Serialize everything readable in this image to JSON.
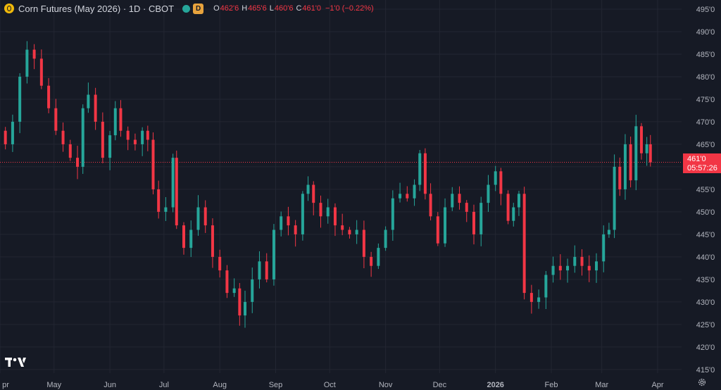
{
  "legend": {
    "symbol_icon": "coin-icon",
    "title": "Corn Futures (May 2026) · 1D · CBOT",
    "status_icon": "market-dot-icon",
    "badge": "D",
    "open_label": "O",
    "open_value": "462'6",
    "high_label": "H",
    "high_value": "465'6",
    "low_label": "L",
    "low_value": "460'6",
    "close_label": "C",
    "close_value": "461'0",
    "change": "−1'0 (−0.22%)"
  },
  "price_tag": {
    "price": "461'0",
    "countdown": "05:57:26"
  },
  "colors": {
    "up": "#26a69a",
    "down": "#f23645",
    "background": "#161a25",
    "grid": "#232632",
    "axis_text": "#b2b5be"
  },
  "icons": {
    "logo": "tradingview-logo-icon",
    "settings": "gear-icon"
  },
  "chart_data": {
    "type": "candlestick",
    "title": "Corn Futures (May 2026)",
    "y_axis_labels": [
      "495'0",
      "490'0",
      "485'0",
      "480'0",
      "475'0",
      "470'0",
      "465'0",
      "460'0",
      "455'0",
      "450'0",
      "445'0",
      "440'0",
      "435'0",
      "430'0",
      "425'0",
      "420'0",
      "415'0"
    ],
    "y_axis_values": [
      495,
      490,
      485,
      480,
      475,
      470,
      465,
      460,
      455,
      450,
      445,
      440,
      435,
      430,
      425,
      420,
      415
    ],
    "ylim": [
      414.2,
      496.4
    ],
    "x_axis_labels": [
      "pr",
      "May",
      "Jun",
      "Jul",
      "Aug",
      "Sep",
      "Oct",
      "Nov",
      "Dec",
      "2026",
      "Feb",
      "Mar",
      "Apr"
    ],
    "x_axis_dates": [
      "2025-04-01",
      "2025-05-01",
      "2025-06-01",
      "2025-07-01",
      "2025-08-01",
      "2025-09-01",
      "2025-10-01",
      "2025-11-01",
      "2025-12-01",
      "2026-01-01",
      "2026-02-01",
      "2026-03-01",
      "2026-04-01"
    ],
    "last_price": 461.0,
    "closes": [
      {
        "date": "2025-03-31",
        "close": 468
      },
      {
        "date": "2025-04-04",
        "close": 465
      },
      {
        "date": "2025-04-08",
        "close": 470
      },
      {
        "date": "2025-04-12",
        "close": 480
      },
      {
        "date": "2025-04-16",
        "close": 486
      },
      {
        "date": "2025-04-20",
        "close": 484
      },
      {
        "date": "2025-04-24",
        "close": 478
      },
      {
        "date": "2025-04-28",
        "close": 473
      },
      {
        "date": "2025-05-02",
        "close": 468
      },
      {
        "date": "2025-05-06",
        "close": 465
      },
      {
        "date": "2025-05-10",
        "close": 462
      },
      {
        "date": "2025-05-14",
        "close": 460
      },
      {
        "date": "2025-05-17",
        "close": 473
      },
      {
        "date": "2025-05-20",
        "close": 476
      },
      {
        "date": "2025-05-24",
        "close": 470
      },
      {
        "date": "2025-05-28",
        "close": 462
      },
      {
        "date": "2025-06-01",
        "close": 467
      },
      {
        "date": "2025-06-04",
        "close": 473
      },
      {
        "date": "2025-06-07",
        "close": 468
      },
      {
        "date": "2025-06-11",
        "close": 466
      },
      {
        "date": "2025-06-15",
        "close": 465
      },
      {
        "date": "2025-06-19",
        "close": 468
      },
      {
        "date": "2025-06-22",
        "close": 466
      },
      {
        "date": "2025-06-25",
        "close": 455
      },
      {
        "date": "2025-06-28",
        "close": 450
      },
      {
        "date": "2025-07-02",
        "close": 451
      },
      {
        "date": "2025-07-06",
        "close": 462
      },
      {
        "date": "2025-07-08",
        "close": 447
      },
      {
        "date": "2025-07-12",
        "close": 442
      },
      {
        "date": "2025-07-16",
        "close": 446
      },
      {
        "date": "2025-07-20",
        "close": 451
      },
      {
        "date": "2025-07-24",
        "close": 447
      },
      {
        "date": "2025-07-28",
        "close": 440
      },
      {
        "date": "2025-08-01",
        "close": 437
      },
      {
        "date": "2025-08-05",
        "close": 432
      },
      {
        "date": "2025-08-09",
        "close": 433
      },
      {
        "date": "2025-08-12",
        "close": 427
      },
      {
        "date": "2025-08-15",
        "close": 430
      },
      {
        "date": "2025-08-19",
        "close": 435
      },
      {
        "date": "2025-08-23",
        "close": 439
      },
      {
        "date": "2025-08-27",
        "close": 435
      },
      {
        "date": "2025-08-31",
        "close": 446
      },
      {
        "date": "2025-09-04",
        "close": 449
      },
      {
        "date": "2025-09-08",
        "close": 447
      },
      {
        "date": "2025-09-12",
        "close": 445
      },
      {
        "date": "2025-09-16",
        "close": 454
      },
      {
        "date": "2025-09-19",
        "close": 456
      },
      {
        "date": "2025-09-22",
        "close": 452
      },
      {
        "date": "2025-09-26",
        "close": 449
      },
      {
        "date": "2025-09-30",
        "close": 451
      },
      {
        "date": "2025-10-04",
        "close": 447
      },
      {
        "date": "2025-10-08",
        "close": 446
      },
      {
        "date": "2025-10-12",
        "close": 445
      },
      {
        "date": "2025-10-16",
        "close": 446
      },
      {
        "date": "2025-10-20",
        "close": 440
      },
      {
        "date": "2025-10-24",
        "close": 438
      },
      {
        "date": "2025-10-28",
        "close": 442
      },
      {
        "date": "2025-11-01",
        "close": 446
      },
      {
        "date": "2025-11-05",
        "close": 453
      },
      {
        "date": "2025-11-09",
        "close": 454
      },
      {
        "date": "2025-11-13",
        "close": 453
      },
      {
        "date": "2025-11-17",
        "close": 456
      },
      {
        "date": "2025-11-20",
        "close": 463
      },
      {
        "date": "2025-11-23",
        "close": 454
      },
      {
        "date": "2025-11-26",
        "close": 449
      },
      {
        "date": "2025-11-30",
        "close": 443
      },
      {
        "date": "2025-12-04",
        "close": 451
      },
      {
        "date": "2025-12-08",
        "close": 454
      },
      {
        "date": "2025-12-12",
        "close": 452
      },
      {
        "date": "2025-12-16",
        "close": 450
      },
      {
        "date": "2025-12-20",
        "close": 445
      },
      {
        "date": "2025-12-24",
        "close": 452
      },
      {
        "date": "2025-12-28",
        "close": 456
      },
      {
        "date": "2026-01-01",
        "close": 459
      },
      {
        "date": "2026-01-04",
        "close": 454
      },
      {
        "date": "2026-01-08",
        "close": 448
      },
      {
        "date": "2026-01-11",
        "close": 451
      },
      {
        "date": "2026-01-14",
        "close": 454
      },
      {
        "date": "2026-01-17",
        "close": 432
      },
      {
        "date": "2026-01-21",
        "close": 430
      },
      {
        "date": "2026-01-25",
        "close": 431
      },
      {
        "date": "2026-01-29",
        "close": 436
      },
      {
        "date": "2026-02-02",
        "close": 438
      },
      {
        "date": "2026-02-06",
        "close": 437
      },
      {
        "date": "2026-02-10",
        "close": 438
      },
      {
        "date": "2026-02-14",
        "close": 440
      },
      {
        "date": "2026-02-18",
        "close": 438
      },
      {
        "date": "2026-02-22",
        "close": 437
      },
      {
        "date": "2026-02-26",
        "close": 439
      },
      {
        "date": "2026-03-02",
        "close": 445
      },
      {
        "date": "2026-03-05",
        "close": 446
      },
      {
        "date": "2026-03-08",
        "close": 460
      },
      {
        "date": "2026-03-11",
        "close": 455
      },
      {
        "date": "2026-03-14",
        "close": 465
      },
      {
        "date": "2026-03-17",
        "close": 457
      },
      {
        "date": "2026-03-20",
        "close": 469
      },
      {
        "date": "2026-03-23",
        "close": 463
      },
      {
        "date": "2026-03-26",
        "close": 465
      },
      {
        "date": "2026-03-28",
        "close": 461
      }
    ]
  }
}
